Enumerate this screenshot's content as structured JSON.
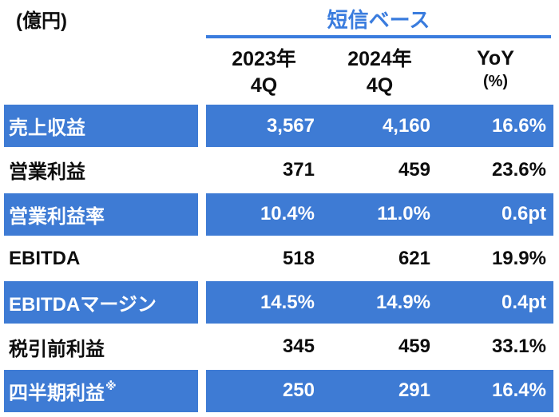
{
  "unit_label": "(億円)",
  "header": {
    "title": "短信ベース",
    "columns": [
      {
        "line1": "2023年",
        "line2": "4Q"
      },
      {
        "line1": "2024年",
        "line2": "4Q"
      },
      {
        "line1": "YoY",
        "line2": "(%)"
      }
    ]
  },
  "chart_data": {
    "type": "table",
    "title": "短信ベース",
    "unit": "(億円)",
    "columns": [
      "2023年4Q",
      "2024年4Q",
      "YoY(%)"
    ],
    "rows": [
      {
        "label": "売上収益",
        "label_suffix": "",
        "values": [
          "3,567",
          "4,160",
          "16.6%"
        ],
        "highlight": true
      },
      {
        "label": "営業利益",
        "label_suffix": "",
        "values": [
          "371",
          "459",
          "23.6%"
        ],
        "highlight": false
      },
      {
        "label": "営業利益率",
        "label_suffix": "",
        "values": [
          "10.4%",
          "11.0%",
          "0.6pt"
        ],
        "highlight": true
      },
      {
        "label": "EBITDA",
        "label_suffix": "",
        "values": [
          "518",
          "621",
          "19.9%"
        ],
        "highlight": false
      },
      {
        "label": "EBITDAマージン",
        "label_suffix": "",
        "values": [
          "14.5%",
          "14.9%",
          "0.4pt"
        ],
        "highlight": true
      },
      {
        "label": "税引前利益",
        "label_suffix": "",
        "values": [
          "345",
          "459",
          "33.1%"
        ],
        "highlight": false
      },
      {
        "label": "四半期利益",
        "label_suffix": "※",
        "values": [
          "250",
          "291",
          "16.4%"
        ],
        "highlight": true
      }
    ]
  },
  "colors": {
    "row_blue": "#3e7bd4",
    "accent_blue": "#3a7cde"
  }
}
